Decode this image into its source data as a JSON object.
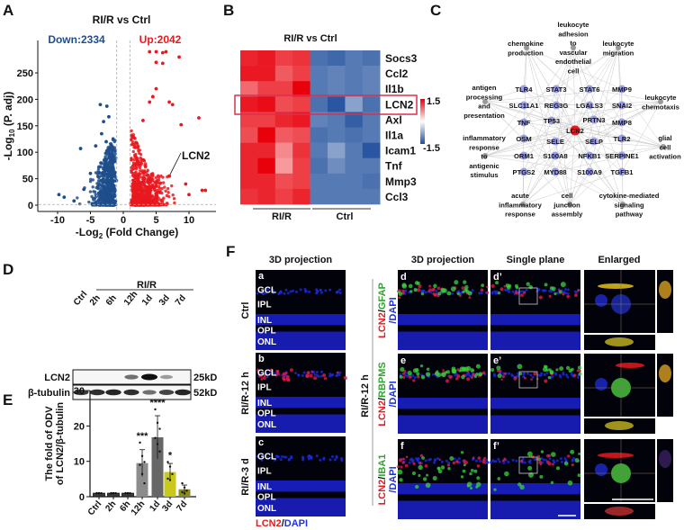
{
  "panel_labels": {
    "A": "A",
    "B": "B",
    "C": "C",
    "D": "D",
    "E": "E",
    "F": "F"
  },
  "chart_data": [
    {
      "type": "scatter",
      "panel": "A",
      "title": "RI/R vs Ctrl",
      "xlabel": {
        "main": "-Log",
        "sub": "2",
        "rest": " (Fold Change)"
      },
      "ylabel": {
        "main": "-Log",
        "sub": "10",
        "rest": " (P. adj)"
      },
      "xlim": [
        -12.5,
        13
      ],
      "ylim": [
        -5,
        300
      ],
      "xticks": [
        "-10",
        "-5",
        "0",
        "5",
        "10"
      ],
      "yticks": [
        "0",
        "50",
        "100",
        "150",
        "200",
        "250"
      ],
      "thresholds": {
        "log2fc": [
          -1,
          1
        ],
        "neg_log10_padj": 1.3
      },
      "down_label": "Down:2334",
      "up_label": "Up:2042",
      "colors": {
        "down": "#1f4e8c",
        "up": "#e8191f",
        "threshold": "#aaaaaa"
      },
      "highlight": {
        "gene": "LCN2",
        "x": 7.0,
        "y": 55
      },
      "series": [
        {
          "name": "Down",
          "count": 2334,
          "outliers": [
            [
              -3.5,
              190
            ],
            [
              -2.5,
              187
            ],
            [
              -2.2,
              167
            ],
            [
              -3.0,
              158
            ],
            [
              -3.3,
              135
            ],
            [
              -6.5,
              107
            ],
            [
              -4.2,
              112
            ],
            [
              -2.6,
              120
            ],
            [
              -9.8,
              20
            ],
            [
              -9.0,
              15
            ],
            [
              -7.5,
              8
            ],
            [
              -5.0,
              60
            ],
            [
              -6.0,
              30
            ]
          ]
        },
        {
          "name": "Up",
          "count": 2042,
          "outliers": [
            [
              4.0,
              290
            ],
            [
              5.0,
              290
            ],
            [
              6.0,
              288
            ],
            [
              6.5,
              290
            ],
            [
              8.5,
              280
            ],
            [
              5.0,
              270
            ],
            [
              6.0,
              268
            ],
            [
              5.0,
              220
            ],
            [
              4.5,
              205
            ],
            [
              7.0,
              195
            ],
            [
              7.5,
              190
            ],
            [
              11.5,
              165
            ],
            [
              8.8,
              152
            ],
            [
              4.0,
              195
            ],
            [
              3.0,
              160
            ],
            [
              12.5,
              28
            ],
            [
              12.0,
              28
            ],
            [
              10.0,
              20
            ],
            [
              9.5,
              40
            ]
          ]
        }
      ]
    },
    {
      "type": "heatmap",
      "panel": "B",
      "title": "RI/R vs Ctrl",
      "rows": [
        "Socs3",
        "Ccl2",
        "Il1b",
        "LCN2",
        "Axl",
        "Il1a",
        "Icam1",
        "Tnf",
        "Mmp3",
        "Ccl3"
      ],
      "groups": [
        "RI/R",
        "Ctrl"
      ],
      "columns_per_group": 4,
      "highlighted_row": "LCN2",
      "scale": {
        "min": -1.5,
        "max": 1.5,
        "min_label": "-1.5",
        "max_label": "1.5",
        "low": "#1f4e9c",
        "mid": "#ffffff",
        "high": "#e8000b"
      },
      "values": [
        [
          1.2,
          1.3,
          1.0,
          1.1,
          -1.1,
          -1.2,
          -1.0,
          -1.1
        ],
        [
          1.3,
          1.3,
          0.8,
          1.0,
          -1.0,
          -0.9,
          -1.0,
          -0.9
        ],
        [
          0.7,
          1.0,
          1.0,
          1.5,
          -1.0,
          -0.9,
          -1.0,
          -0.9
        ],
        [
          1.3,
          1.4,
          0.9,
          1.0,
          -1.1,
          -1.4,
          -0.6,
          -1.1
        ],
        [
          1.0,
          1.0,
          1.2,
          1.3,
          -0.9,
          -1.0,
          -1.3,
          -1.0
        ],
        [
          0.9,
          1.5,
          0.8,
          0.9,
          -1.1,
          -1.0,
          -1.1,
          -1.0
        ],
        [
          1.2,
          1.2,
          0.5,
          1.1,
          -1.0,
          -0.6,
          -1.0,
          -1.4
        ],
        [
          1.2,
          1.5,
          0.4,
          1.0,
          -1.1,
          -0.8,
          -1.0,
          -1.0
        ],
        [
          1.2,
          1.2,
          0.9,
          1.0,
          -1.0,
          -1.0,
          -1.0,
          -1.1
        ],
        [
          1.1,
          1.2,
          1.0,
          1.2,
          -1.0,
          -1.0,
          -1.0,
          -1.0
        ]
      ]
    },
    {
      "type": "bar",
      "panel": "E",
      "ylabel": [
        "The fold of ODV",
        "of LCN2/β-tubulin"
      ],
      "categories": [
        "Ctrl",
        "2h",
        "6h",
        "12h",
        "1d",
        "3d",
        "7d"
      ],
      "values": [
        1.0,
        1.0,
        1.0,
        9.5,
        16.8,
        7.0,
        2.1
      ],
      "errors": [
        0,
        0,
        0,
        3.8,
        6.1,
        2.4,
        1.2
      ],
      "significance": [
        "",
        "",
        "",
        "***",
        "****",
        "*",
        ""
      ],
      "points": [
        [
          1,
          1,
          1,
          1,
          1
        ],
        [
          1,
          1,
          1,
          1,
          1
        ],
        [
          1,
          1,
          1,
          1,
          1
        ],
        [
          15.3,
          11.5,
          9.8,
          9.0,
          6.4,
          3.8
        ],
        [
          24.7,
          20.9,
          19.2,
          16.6,
          14.9,
          12.8
        ],
        [
          9.8,
          8.5,
          6.4,
          5.1,
          4.7
        ],
        [
          3.8,
          2.6,
          1.7,
          1.3,
          0.9
        ]
      ],
      "colors": [
        "#3a3a3a",
        "#3a3a3a",
        "#3a3a3a",
        "#8c8c8c",
        "#666666",
        "#c8c81e",
        "#8a8a22"
      ],
      "ylim": [
        0,
        30
      ],
      "yticks": [
        "0",
        "10",
        "20",
        "30"
      ]
    }
  ],
  "network": {
    "center": "LCN2",
    "genes": [
      "TLR4",
      "STAT3",
      "STAT6",
      "MMP9",
      "SLC11A1",
      "REG3G",
      "LGALS3",
      "SNAI2",
      "TNF",
      "TP53",
      "PRTN3",
      "MMP8",
      "OSM",
      "SELE",
      "SELP",
      "TLR2",
      "ORM1",
      "S100A8",
      "NFKB1",
      "SERPINE1",
      "PTGS2",
      "MYD88",
      "S100A9",
      "TGFB1"
    ],
    "terms": [
      [
        "chemokine",
        "production"
      ],
      [
        "leukocyte",
        "adhesion",
        "to",
        "vascular",
        "endothelial",
        "cell"
      ],
      [
        "leukocyte",
        "migration"
      ],
      [
        "antigen",
        "processing",
        "and",
        "presentation"
      ],
      [
        "leukocyte",
        "chemotaxis"
      ],
      [
        "inflammatory",
        "response",
        "to",
        "antigenic",
        "stimulus"
      ],
      [
        "glial",
        "cell",
        "activation"
      ],
      [
        "acute",
        "inflammatory",
        "response"
      ],
      [
        "cell",
        "junction",
        "assembly"
      ],
      [
        "cytokine-mediated",
        "signaling",
        "pathway"
      ]
    ],
    "colors": {
      "center": "#e8191f",
      "gene": "#8b8fe6",
      "term": "#999999",
      "edge": "#cccccc"
    }
  },
  "western_blot": {
    "group_label": "RI/R",
    "lanes": [
      "Ctrl",
      "2h",
      "6h",
      "12h",
      "1d",
      "3d",
      "7d"
    ],
    "rows": [
      {
        "protein": "LCN2",
        "size": "25kD",
        "intensity": [
          0,
          0,
          0,
          0.55,
          1.0,
          0.35,
          0
        ]
      },
      {
        "protein": "β-tubulin",
        "size": "52kD",
        "intensity": [
          0.8,
          0.85,
          0.9,
          0.85,
          0.55,
          0.75,
          0.9
        ]
      }
    ]
  },
  "microscopy": {
    "left_header": "3D projection",
    "left_rows": [
      {
        "letter": "a",
        "label": "Ctrl"
      },
      {
        "letter": "b",
        "label": "RI/R-12 h"
      },
      {
        "letter": "c",
        "label": "RI/R-3 d"
      }
    ],
    "layers": [
      "GCL",
      "IPL",
      "INL",
      "OPL",
      "ONL"
    ],
    "left_legend": {
      "red": "LCN2",
      "sep": "/",
      "blue": "DAPI"
    },
    "right_headers": [
      "3D projection",
      "Single plane",
      "Enlarged"
    ],
    "right_group_label": "RI/R-12 h",
    "right_rows": [
      {
        "letters": [
          "d",
          "d’"
        ],
        "red": "LCN2",
        "green": "GFAP",
        "blue": "/DAPI"
      },
      {
        "letters": [
          "e",
          "e’"
        ],
        "red": "LCN2",
        "green": "RBPMS",
        "blue": "/DAPI"
      },
      {
        "letters": [
          "f",
          "f’"
        ],
        "red": "LCN2",
        "green": "IBA1",
        "blue": "/DAPI"
      }
    ]
  }
}
